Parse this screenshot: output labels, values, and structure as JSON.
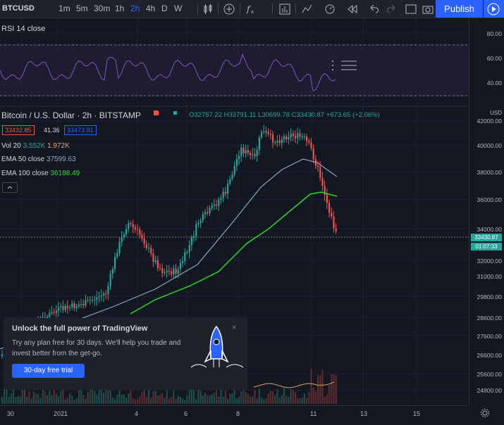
{
  "toolbar": {
    "symbol": "BTCUSD",
    "intervals": [
      "1m",
      "5m",
      "30m",
      "1h",
      "2h",
      "4h",
      "D",
      "W"
    ],
    "active_interval": "2h",
    "publish_label": "Publish",
    "icons": [
      "compare-icon",
      "add-indicator-icon",
      "fx-icon",
      "bar-chart-icon",
      "alert-icon",
      "replay-icon",
      "rewind-icon",
      "undo-icon",
      "fullscreen-icon",
      "camera-icon"
    ]
  },
  "rsi": {
    "label": "RSI 14 close",
    "axis": [
      "80.00",
      "60.00",
      "40.00"
    ]
  },
  "main_legend": {
    "title": "Bitcoin / U.S. Dollar",
    "interval": "2h",
    "exchange": "BITSTAMP",
    "ohlc": "O32757.22 H33791.11 L30699.78 C33430.87 +673.65 (+2.06%)",
    "bid": "33432.85",
    "spread": "41.36",
    "ask": "33473.91",
    "vol_label": "Vol 20",
    "vol_value1": "3.552K",
    "vol_value2": "1.972K",
    "ema50_label": "EMA 50 close",
    "ema50_value": "37599.63",
    "ema100_label": "EMA 100 close",
    "ema100_value": "36188.49",
    "collapse_icon": "chevron-up-icon"
  },
  "price_axis": {
    "currency": "USD",
    "labels": [
      "42000.00",
      "40000.00",
      "38000.00",
      "36000.00",
      "34000.00",
      "32000.00",
      "31000.00",
      "29800.00",
      "28600.00",
      "27600.00",
      "26600.00",
      "25600.00",
      "24800.00"
    ],
    "last_price": "33430.87",
    "countdown": "01:07:33"
  },
  "time_axis": {
    "labels": [
      "30",
      "2021",
      "4",
      "6",
      "8",
      "11",
      "13",
      "15"
    ]
  },
  "popup": {
    "title": "Unlock the full power of TradingView",
    "text": "Try any plan free for 30 days. We'll help you trade and invest better from the get-go.",
    "button": "30-day free trial",
    "close": "×"
  },
  "colors": {
    "up": "#26a69a",
    "down": "#ef5350",
    "ema50": "#8ba7c1",
    "ema100": "#2dd62d",
    "rsi": "#7e57c2",
    "accent": "#2962ff"
  }
}
